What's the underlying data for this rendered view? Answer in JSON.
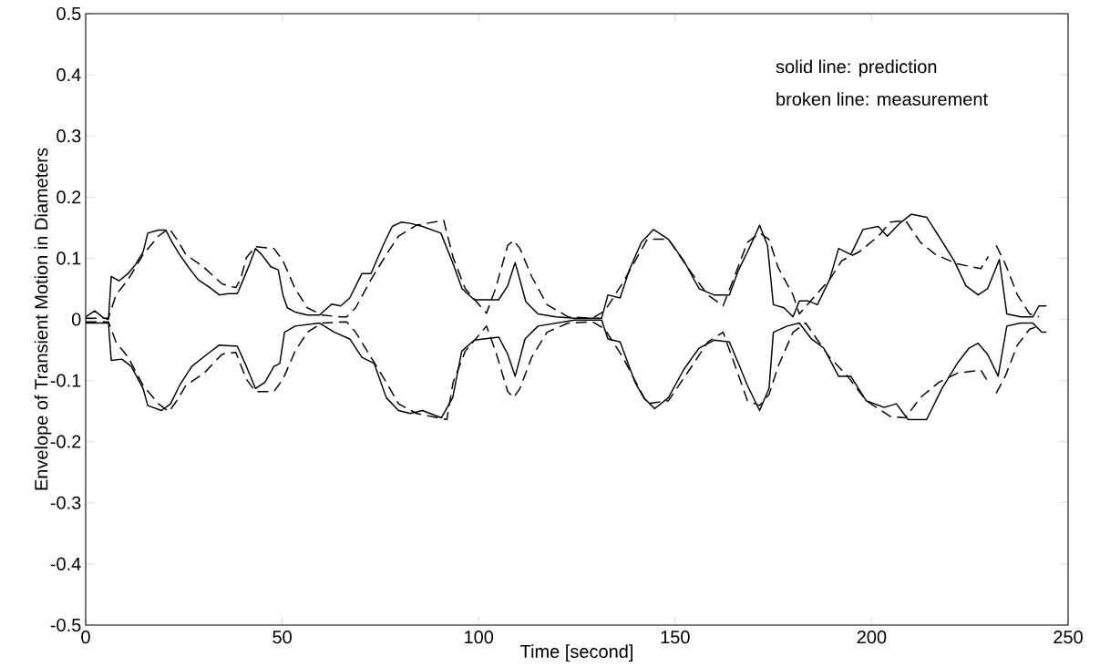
{
  "chart_data": {
    "type": "line",
    "xlabel": "Time [second]",
    "ylabel": "Envelope of Transient Motion in Diameters",
    "annotations": [
      "solid line: prediction",
      "broken line: measurement"
    ],
    "xlim": [
      0,
      250
    ],
    "ylim": [
      -0.5,
      0.5
    ],
    "xticks": [
      0,
      50,
      100,
      150,
      200,
      250
    ],
    "yticks": [
      -0.5,
      -0.4,
      -0.3,
      -0.2,
      -0.1,
      0,
      0.1,
      0.2,
      0.3,
      0.4,
      0.5
    ],
    "series": [
      {
        "color": "#000000",
        "line_style": "solid",
        "x": [
          0,
          2.3,
          4.6,
          5.8,
          6.5,
          8.5,
          10.8,
          12.7,
          14.6,
          15.8,
          18.5,
          20.4,
          22.0,
          23.9,
          26.2,
          28.6,
          31.6,
          34.0,
          36.3,
          38.6,
          40.1,
          41.7,
          43.2,
          44.8,
          47.1,
          49.0,
          50.2,
          51.3,
          53.3,
          56.4,
          59.5,
          62.6,
          64.9,
          67.2,
          70.3,
          72.6,
          75.7,
          78.0,
          80.3,
          82.6,
          85.7,
          90.4,
          93.5,
          95.8,
          98.9,
          105.1,
          107.4,
          109.3,
          112.0,
          115.1,
          119.7,
          124.4,
          129.0,
          131.3,
          132.9,
          136.0,
          138.3,
          141.4,
          144.5,
          148.3,
          152.2,
          156.1,
          159.9,
          163.8,
          166.1,
          169.2,
          171.5,
          173.5,
          175.0,
          177.7,
          180.0,
          181.6,
          183.9,
          186.2,
          189.3,
          191.6,
          194.7,
          197.8,
          201.7,
          204.0,
          207.1,
          210.1,
          214.0,
          217.1,
          221.0,
          224.0,
          227.1,
          229.5,
          231.4,
          232.5,
          234.4,
          237.9,
          241.0,
          242.6,
          244.5
        ],
        "values": [
          0.004,
          0.014,
          0.002,
          0.0,
          0.07,
          0.063,
          0.075,
          0.09,
          0.11,
          0.141,
          0.146,
          0.146,
          0.126,
          0.106,
          0.085,
          0.065,
          0.052,
          0.04,
          0.042,
          0.042,
          0.065,
          0.09,
          0.116,
          0.106,
          0.086,
          0.081,
          0.04,
          0.019,
          0.012,
          0.007,
          0.007,
          0.025,
          0.022,
          0.035,
          0.075,
          0.075,
          0.121,
          0.152,
          0.159,
          0.157,
          0.152,
          0.141,
          0.091,
          0.05,
          0.032,
          0.032,
          0.055,
          0.093,
          0.029,
          0.009,
          0.004,
          0.002,
          0.002,
          0.002,
          0.04,
          0.035,
          0.08,
          0.126,
          0.147,
          0.131,
          0.096,
          0.05,
          0.04,
          0.04,
          0.08,
          0.121,
          0.154,
          0.121,
          0.024,
          0.019,
          0.004,
          0.03,
          0.03,
          0.024,
          0.065,
          0.116,
          0.106,
          0.147,
          0.152,
          0.136,
          0.157,
          0.172,
          0.167,
          0.136,
          0.096,
          0.055,
          0.04,
          0.05,
          0.08,
          0.098,
          0.009,
          0.004,
          0.004,
          0.022,
          0.022
        ]
      },
      {
        "color": "#000000",
        "line_style": "solid",
        "x": [
          0,
          5.8,
          6.5,
          9.2,
          11.6,
          14.6,
          15.8,
          19.3,
          21.6,
          23.9,
          27.0,
          30.9,
          34.0,
          38.6,
          40.9,
          43.2,
          45.6,
          47.9,
          49.4,
          50.6,
          53.3,
          59.5,
          63.3,
          67.2,
          70.3,
          73.4,
          76.5,
          79.6,
          82.6,
          85.7,
          90.5,
          93.4,
          95.7,
          98.9,
          105.1,
          107.4,
          109.3,
          111.8,
          115.1,
          124.4,
          131.3,
          132.9,
          136.0,
          139.8,
          142.0,
          144.8,
          148.3,
          152.2,
          156.1,
          159.9,
          163.8,
          166.1,
          168.4,
          171.5,
          173.9,
          175.0,
          178.5,
          181.6,
          184.7,
          187.8,
          191.6,
          194.7,
          198.6,
          203.2,
          206.3,
          209.3,
          214.0,
          217.9,
          221.8,
          224.8,
          227.1,
          229.5,
          232.2,
          234.4,
          237.9,
          241.0,
          243.3,
          244.5
        ],
        "values": [
          -0.006,
          -0.006,
          -0.067,
          -0.065,
          -0.077,
          -0.113,
          -0.141,
          -0.149,
          -0.138,
          -0.108,
          -0.077,
          -0.057,
          -0.042,
          -0.044,
          -0.077,
          -0.113,
          -0.103,
          -0.077,
          -0.072,
          -0.021,
          -0.011,
          -0.006,
          -0.021,
          -0.032,
          -0.062,
          -0.072,
          -0.128,
          -0.149,
          -0.154,
          -0.149,
          -0.161,
          -0.128,
          -0.052,
          -0.034,
          -0.029,
          -0.057,
          -0.093,
          -0.032,
          -0.011,
          -0.001,
          -0.001,
          -0.032,
          -0.037,
          -0.103,
          -0.128,
          -0.146,
          -0.128,
          -0.082,
          -0.047,
          -0.034,
          -0.037,
          -0.072,
          -0.108,
          -0.149,
          -0.113,
          -0.021,
          -0.011,
          -0.006,
          -0.032,
          -0.047,
          -0.093,
          -0.093,
          -0.133,
          -0.144,
          -0.138,
          -0.164,
          -0.164,
          -0.113,
          -0.072,
          -0.047,
          -0.039,
          -0.057,
          -0.093,
          -0.011,
          -0.006,
          -0.006,
          -0.021,
          -0.021
        ]
      },
      {
        "color": "#000000",
        "line_style": "dashed",
        "x": [
          0,
          5.8,
          7.7,
          10.8,
          14.6,
          18.5,
          21.2,
          23.2,
          25.5,
          30.1,
          34.7,
          38.2,
          39.4,
          40.9,
          43.2,
          47.9,
          50.2,
          53.3,
          56.4,
          60.2,
          64.9,
          66.4,
          68.7,
          72.6,
          76.5,
          79.6,
          84.2,
          91.1,
          93.5,
          96.6,
          102.0,
          104.3,
          107.4,
          108.9,
          110.5,
          113.5,
          117.4,
          122.8,
          129.0,
          132.1,
          136.7,
          142.9,
          148.3,
          153.7,
          158.3,
          162.2,
          164.5,
          168.4,
          171.5,
          173.9,
          176.2,
          180.0,
          181.6,
          189.3,
          192.4,
          197.0,
          201.7,
          204.8,
          208.6,
          212.4,
          216.3,
          221.6,
          227.8,
          229.7,
          230.7,
          231.7,
          234.0,
          237.1,
          240.2,
          242.6
        ],
        "values": [
          0.002,
          0.002,
          0.04,
          0.065,
          0.106,
          0.136,
          0.149,
          0.131,
          0.106,
          0.085,
          0.058,
          0.052,
          0.065,
          0.101,
          0.119,
          0.116,
          0.096,
          0.05,
          0.019,
          0.007,
          0.004,
          0.004,
          0.019,
          0.065,
          0.106,
          0.136,
          0.154,
          0.162,
          0.101,
          0.05,
          0.01,
          0.05,
          0.121,
          0.129,
          0.116,
          0.07,
          0.024,
          0.004,
          0.002,
          0.014,
          0.06,
          0.131,
          0.131,
          0.08,
          0.04,
          0.022,
          0.06,
          0.126,
          0.141,
          0.131,
          0.085,
          0.04,
          0.009,
          0.065,
          0.096,
          0.111,
          0.136,
          0.159,
          0.162,
          0.126,
          0.106,
          0.091,
          0.083,
          0.103,
          null,
          0.121,
          0.091,
          0.04,
          0.009,
          0.004
        ]
      },
      {
        "color": "#000000",
        "line_style": "dashed",
        "x": [
          0,
          5.8,
          7.7,
          10.8,
          14.6,
          18.5,
          21.2,
          23.2,
          25.5,
          30.1,
          34.7,
          38.2,
          40.9,
          43.2,
          47.9,
          50.2,
          53.3,
          56.4,
          60.2,
          66.4,
          68.7,
          72.6,
          76.5,
          79.6,
          84.2,
          91.9,
          93.5,
          96.6,
          102.0,
          104.3,
          107.4,
          108.9,
          110.5,
          113.5,
          117.4,
          122.8,
          129.0,
          132.1,
          136.7,
          142.9,
          148.3,
          153.7,
          158.3,
          162.2,
          164.5,
          168.4,
          171.5,
          173.9,
          176.2,
          180.0,
          183.2,
          189.3,
          193.9,
          198.6,
          204.8,
          208.6,
          212.4,
          217.1,
          221.8,
          227.8,
          229.7,
          230.7,
          231.7,
          234.0,
          237.1,
          240.2,
          242.6
        ],
        "values": [
          -0.004,
          -0.004,
          -0.037,
          -0.062,
          -0.108,
          -0.138,
          -0.151,
          -0.133,
          -0.108,
          -0.088,
          -0.057,
          -0.054,
          -0.098,
          -0.118,
          -0.118,
          -0.098,
          -0.052,
          -0.021,
          -0.006,
          -0.004,
          -0.021,
          -0.062,
          -0.103,
          -0.138,
          -0.154,
          -0.164,
          -0.103,
          -0.052,
          -0.011,
          -0.052,
          -0.118,
          -0.128,
          -0.113,
          -0.062,
          -0.021,
          -0.006,
          -0.004,
          -0.016,
          -0.062,
          -0.138,
          -0.133,
          -0.082,
          -0.037,
          -0.021,
          -0.062,
          -0.133,
          -0.141,
          -0.123,
          -0.077,
          -0.021,
          -0.006,
          -0.062,
          -0.093,
          -0.133,
          -0.159,
          -0.161,
          -0.128,
          -0.103,
          -0.088,
          -0.083,
          -0.103,
          null,
          -0.121,
          -0.093,
          -0.042,
          -0.016,
          -0.011
        ]
      }
    ]
  }
}
